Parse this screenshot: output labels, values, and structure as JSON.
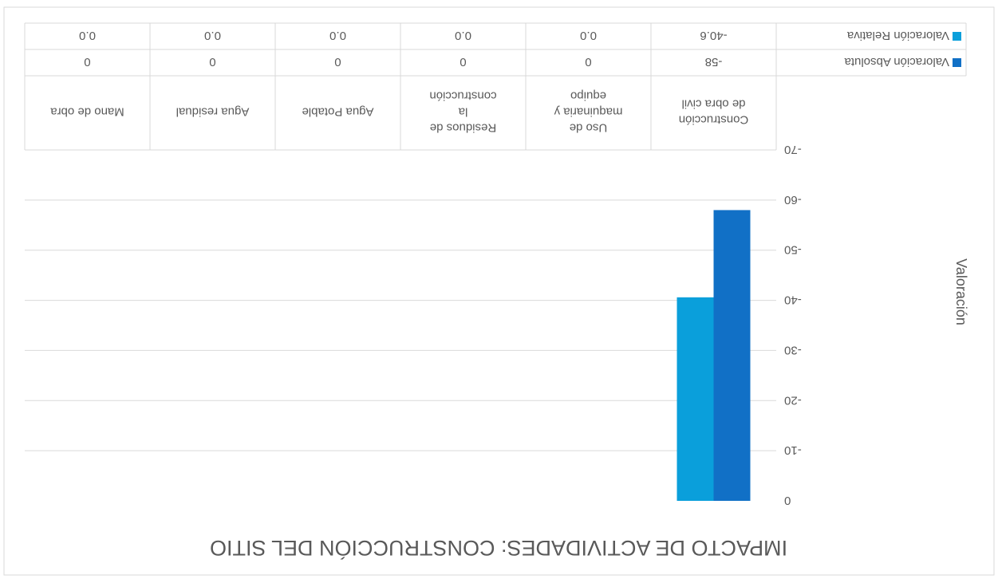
{
  "chart_data": {
    "type": "bar",
    "title": "IMPACTO DE ACTIVIDADES: CONSTRUCCIÓN DEL SITIO",
    "ylabel": "Valoración",
    "xlabel": "",
    "categories": [
      [
        "Construcción",
        "de obra civil"
      ],
      [
        "Uso de",
        "maquinaria y",
        "equipo"
      ],
      [
        "Residuos de",
        "la",
        "construcción"
      ],
      [
        "Agua Potable"
      ],
      [
        "Agua residual"
      ],
      [
        "Mano de obra"
      ]
    ],
    "series": [
      {
        "name": "Valoración Absoluta",
        "color": "#1170C6",
        "values": [
          -58,
          0,
          0,
          0,
          0,
          0
        ],
        "labels": [
          "-58",
          "0",
          "0",
          "0",
          "0",
          "0"
        ]
      },
      {
        "name": "Valoración Relativa",
        "color": "#0A9FDB",
        "values": [
          -40.6,
          0,
          0,
          0,
          0,
          0
        ],
        "labels": [
          "-40.6",
          "0.0",
          "0.0",
          "0.0",
          "0.0",
          "0.0"
        ]
      }
    ],
    "ylim": [
      -70,
      0
    ],
    "yticks": [
      "-70",
      "-60",
      "-50",
      "-40",
      "-30",
      "-20",
      "-10",
      "0"
    ],
    "grid": true,
    "data_table": true,
    "orientation": "rotated-180"
  }
}
